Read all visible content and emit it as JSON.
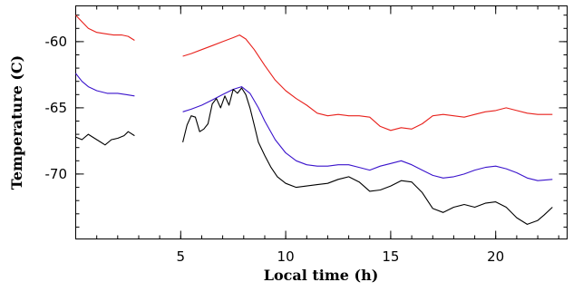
{
  "chart_data": {
    "type": "line",
    "title": "",
    "xlabel": "Local time (h)",
    "ylabel": "Temperature (C)",
    "xlim": [
      0,
      23.4
    ],
    "ylim": [
      -74.9,
      -57.3
    ],
    "xticks": [
      5,
      10,
      15,
      20
    ],
    "xtick_labels": [
      "5",
      "10",
      "15",
      "20"
    ],
    "yticks": [
      -60,
      -65,
      -70
    ],
    "ytick_labels": [
      "-60",
      "-65",
      "-70"
    ],
    "minor_x_step": 1,
    "minor_y_step": 1,
    "grid": false,
    "legend": "none",
    "series": [
      {
        "color": "#e8211c",
        "segments": [
          [
            [
              0.0,
              -58.0
            ],
            [
              0.3,
              -58.5
            ],
            [
              0.6,
              -59.0
            ],
            [
              1.0,
              -59.3
            ],
            [
              1.4,
              -59.4
            ],
            [
              1.8,
              -59.5
            ],
            [
              2.2,
              -59.5
            ],
            [
              2.5,
              -59.6
            ],
            [
              2.8,
              -59.9
            ]
          ],
          [
            [
              5.1,
              -61.1
            ],
            [
              5.5,
              -60.9
            ],
            [
              6.0,
              -60.6
            ],
            [
              6.5,
              -60.3
            ],
            [
              7.0,
              -60.0
            ],
            [
              7.5,
              -59.7
            ],
            [
              7.8,
              -59.5
            ],
            [
              8.1,
              -59.8
            ],
            [
              8.5,
              -60.6
            ],
            [
              9.0,
              -61.8
            ],
            [
              9.5,
              -62.9
            ],
            [
              10.0,
              -63.7
            ],
            [
              10.5,
              -64.3
            ],
            [
              11.0,
              -64.8
            ],
            [
              11.5,
              -65.4
            ],
            [
              12.0,
              -65.6
            ],
            [
              12.5,
              -65.5
            ],
            [
              13.0,
              -65.6
            ],
            [
              13.5,
              -65.6
            ],
            [
              14.0,
              -65.7
            ],
            [
              14.5,
              -66.4
            ],
            [
              15.0,
              -66.7
            ],
            [
              15.5,
              -66.5
            ],
            [
              16.0,
              -66.6
            ],
            [
              16.5,
              -66.2
            ],
            [
              17.0,
              -65.6
            ],
            [
              17.5,
              -65.5
            ],
            [
              18.0,
              -65.6
            ],
            [
              18.5,
              -65.7
            ],
            [
              19.0,
              -65.5
            ],
            [
              19.5,
              -65.3
            ],
            [
              20.0,
              -65.2
            ],
            [
              20.5,
              -65.0
            ],
            [
              21.0,
              -65.2
            ],
            [
              21.5,
              -65.4
            ],
            [
              22.0,
              -65.5
            ],
            [
              22.7,
              -65.5
            ]
          ]
        ]
      },
      {
        "color": "#3a13cc",
        "segments": [
          [
            [
              0.0,
              -62.4
            ],
            [
              0.3,
              -63.0
            ],
            [
              0.6,
              -63.4
            ],
            [
              1.0,
              -63.7
            ],
            [
              1.5,
              -63.9
            ],
            [
              2.0,
              -63.9
            ],
            [
              2.4,
              -64.0
            ],
            [
              2.8,
              -64.1
            ]
          ],
          [
            [
              5.1,
              -65.3
            ],
            [
              5.5,
              -65.1
            ],
            [
              6.0,
              -64.8
            ],
            [
              6.5,
              -64.4
            ],
            [
              7.0,
              -64.0
            ],
            [
              7.5,
              -63.6
            ],
            [
              7.9,
              -63.4
            ],
            [
              8.3,
              -63.9
            ],
            [
              8.7,
              -65.0
            ],
            [
              9.0,
              -66.0
            ],
            [
              9.5,
              -67.4
            ],
            [
              10.0,
              -68.4
            ],
            [
              10.5,
              -69.0
            ],
            [
              11.0,
              -69.3
            ],
            [
              11.5,
              -69.4
            ],
            [
              12.0,
              -69.4
            ],
            [
              12.5,
              -69.3
            ],
            [
              13.0,
              -69.3
            ],
            [
              13.5,
              -69.5
            ],
            [
              14.0,
              -69.7
            ],
            [
              14.5,
              -69.4
            ],
            [
              15.0,
              -69.2
            ],
            [
              15.5,
              -69.0
            ],
            [
              16.0,
              -69.3
            ],
            [
              16.5,
              -69.7
            ],
            [
              17.0,
              -70.1
            ],
            [
              17.5,
              -70.3
            ],
            [
              18.0,
              -70.2
            ],
            [
              18.5,
              -70.0
            ],
            [
              19.0,
              -69.7
            ],
            [
              19.5,
              -69.5
            ],
            [
              20.0,
              -69.4
            ],
            [
              20.5,
              -69.6
            ],
            [
              21.0,
              -69.9
            ],
            [
              21.5,
              -70.3
            ],
            [
              22.0,
              -70.5
            ],
            [
              22.7,
              -70.4
            ]
          ]
        ]
      },
      {
        "color": "#000000",
        "segments": [
          [
            [
              0.0,
              -67.2
            ],
            [
              0.3,
              -67.4
            ],
            [
              0.6,
              -67.0
            ],
            [
              0.9,
              -67.3
            ],
            [
              1.2,
              -67.6
            ],
            [
              1.4,
              -67.8
            ],
            [
              1.7,
              -67.4
            ],
            [
              2.0,
              -67.3
            ],
            [
              2.3,
              -67.1
            ],
            [
              2.5,
              -66.8
            ],
            [
              2.8,
              -67.1
            ]
          ],
          [
            [
              5.1,
              -67.6
            ],
            [
              5.3,
              -66.3
            ],
            [
              5.5,
              -65.6
            ],
            [
              5.7,
              -65.7
            ],
            [
              5.9,
              -66.8
            ],
            [
              6.1,
              -66.6
            ],
            [
              6.3,
              -66.2
            ],
            [
              6.5,
              -64.7
            ],
            [
              6.7,
              -64.3
            ],
            [
              6.9,
              -65.0
            ],
            [
              7.1,
              -64.1
            ],
            [
              7.3,
              -64.8
            ],
            [
              7.5,
              -63.6
            ],
            [
              7.7,
              -63.9
            ],
            [
              7.9,
              -63.5
            ],
            [
              8.1,
              -64.0
            ],
            [
              8.3,
              -65.0
            ],
            [
              8.5,
              -66.3
            ],
            [
              8.7,
              -67.6
            ],
            [
              9.0,
              -68.6
            ],
            [
              9.3,
              -69.5
            ],
            [
              9.6,
              -70.2
            ],
            [
              10.0,
              -70.7
            ],
            [
              10.5,
              -71.0
            ],
            [
              11.0,
              -70.9
            ],
            [
              11.5,
              -70.8
            ],
            [
              12.0,
              -70.7
            ],
            [
              12.5,
              -70.4
            ],
            [
              13.0,
              -70.2
            ],
            [
              13.5,
              -70.6
            ],
            [
              14.0,
              -71.3
            ],
            [
              14.5,
              -71.2
            ],
            [
              15.0,
              -70.9
            ],
            [
              15.5,
              -70.5
            ],
            [
              16.0,
              -70.6
            ],
            [
              16.5,
              -71.4
            ],
            [
              17.0,
              -72.6
            ],
            [
              17.5,
              -72.9
            ],
            [
              18.0,
              -72.5
            ],
            [
              18.5,
              -72.3
            ],
            [
              19.0,
              -72.5
            ],
            [
              19.5,
              -72.2
            ],
            [
              20.0,
              -72.1
            ],
            [
              20.5,
              -72.5
            ],
            [
              21.0,
              -73.3
            ],
            [
              21.5,
              -73.8
            ],
            [
              22.0,
              -73.5
            ],
            [
              22.3,
              -73.1
            ],
            [
              22.7,
              -72.5
            ]
          ]
        ]
      }
    ]
  }
}
